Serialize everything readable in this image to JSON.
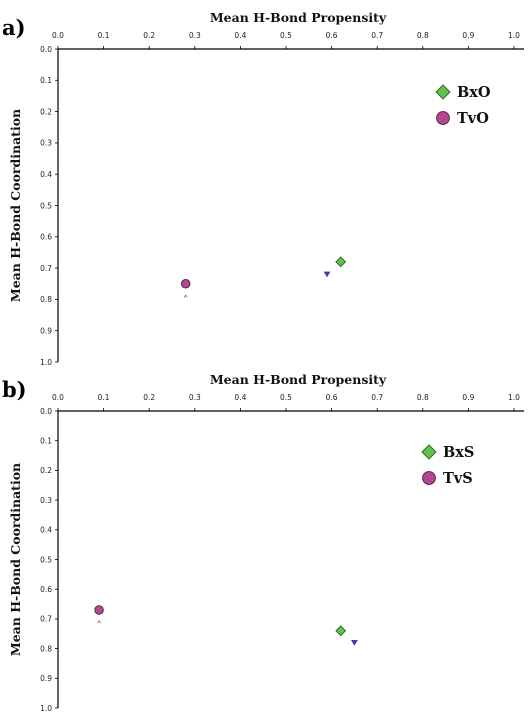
{
  "chart_data": [
    {
      "type": "scatter",
      "panel_label": "a)",
      "title": "",
      "xlabel": "Mean H-Bond Propensity",
      "ylabel": "Mean H-Bond Coordination",
      "xlim": [
        0.0,
        1.0
      ],
      "ylim": [
        1.0,
        0.0
      ],
      "x_axis_position": "top",
      "y_inverted": true,
      "grid": false,
      "legend_position": "top-right",
      "xticks": [
        "0.0",
        "0.1",
        "0.2",
        "0.3",
        "0.4",
        "0.5",
        "0.6",
        "0.7",
        "0.8",
        "0.9",
        "1.0"
      ],
      "yticks": [
        "0.0",
        "0.1",
        "0.2",
        "0.3",
        "0.4",
        "0.5",
        "0.6",
        "0.7",
        "0.8",
        "0.9",
        "1.0"
      ],
      "series": [
        {
          "name": "BxO",
          "marker": "diamond",
          "color": "#5ec24b",
          "points": [
            {
              "x": 0.62,
              "y": 0.68
            }
          ]
        },
        {
          "name": "TvO",
          "marker": "circle",
          "color": "#b4478f",
          "points": [
            {
              "x": 0.28,
              "y": 0.75
            }
          ]
        }
      ],
      "extra_markers": [
        {
          "marker": "triangle-down",
          "color": "#3d3db4",
          "x": 0.59,
          "y": 0.72
        },
        {
          "marker": "caret",
          "color": "#b4478f",
          "x": 0.28,
          "y": 0.79
        }
      ]
    },
    {
      "type": "scatter",
      "panel_label": "b)",
      "title": "",
      "xlabel": "Mean H-Bond Propensity",
      "ylabel": "Mean H-Bond Coordination",
      "xlim": [
        0.0,
        1.0
      ],
      "ylim": [
        1.0,
        0.0
      ],
      "x_axis_position": "top",
      "y_inverted": true,
      "grid": false,
      "legend_position": "top-right",
      "xticks": [
        "0.0",
        "0.1",
        "0.2",
        "0.3",
        "0.4",
        "0.5",
        "0.6",
        "0.7",
        "0.8",
        "0.9",
        "1.0"
      ],
      "yticks": [
        "0.0",
        "0.1",
        "0.2",
        "0.3",
        "0.4",
        "0.5",
        "0.6",
        "0.7",
        "0.8",
        "0.9",
        "1.0"
      ],
      "series": [
        {
          "name": "BxS",
          "marker": "diamond",
          "color": "#5ec24b",
          "points": [
            {
              "x": 0.62,
              "y": 0.74
            }
          ]
        },
        {
          "name": "TvS",
          "marker": "circle",
          "color": "#b4478f",
          "points": [
            {
              "x": 0.09,
              "y": 0.67
            }
          ]
        }
      ],
      "extra_markers": [
        {
          "marker": "triangle-down",
          "color": "#3d3db4",
          "x": 0.65,
          "y": 0.78
        },
        {
          "marker": "caret",
          "color": "#b4478f",
          "x": 0.09,
          "y": 0.71
        }
      ]
    }
  ]
}
